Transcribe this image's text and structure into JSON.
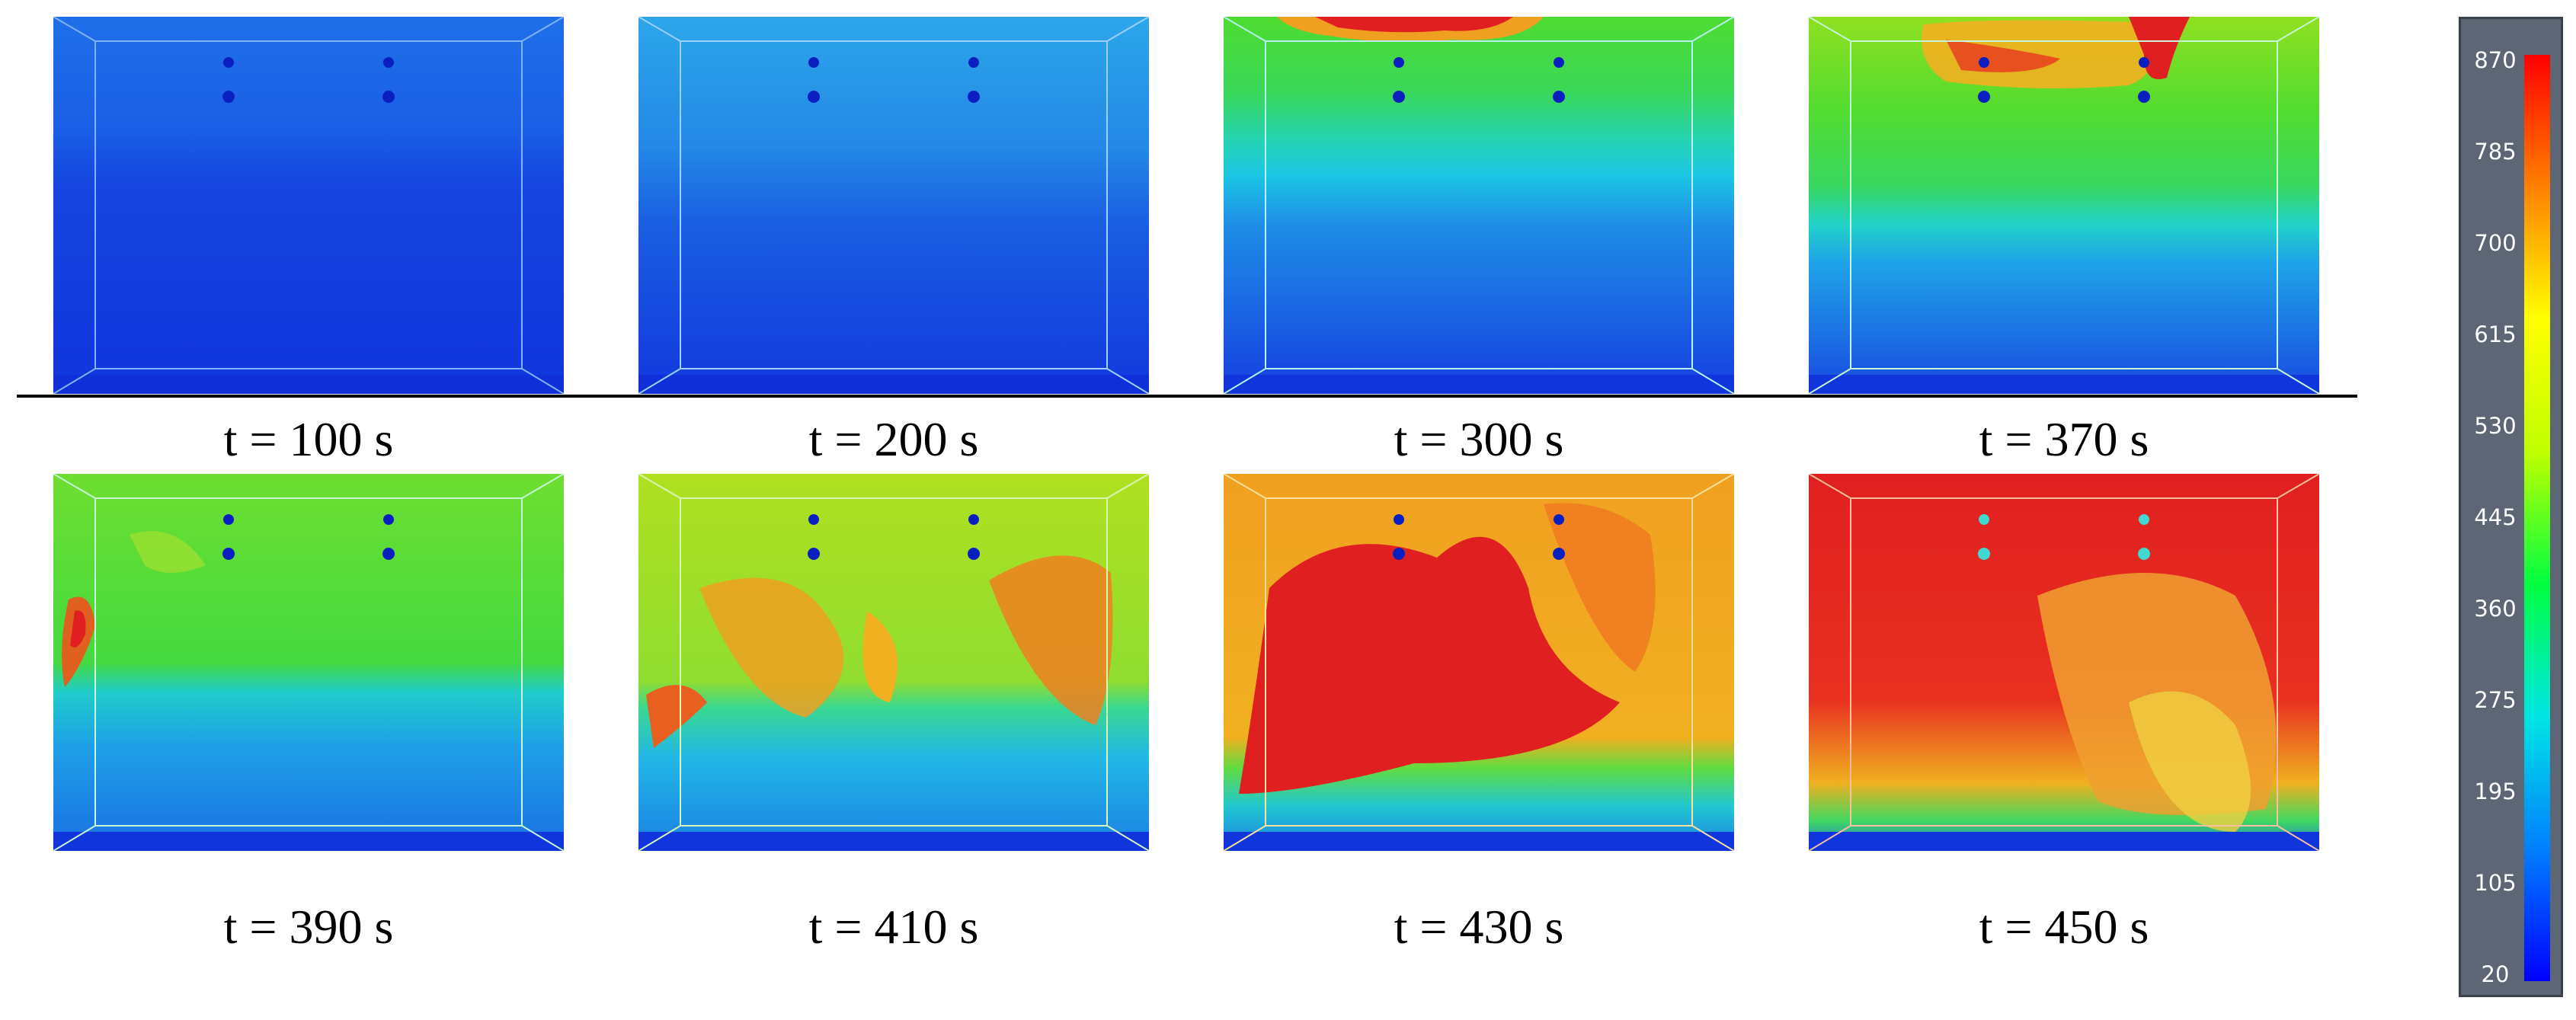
{
  "panels": [
    {
      "caption": "t = 100 s",
      "hot_layer_fraction": 0.0
    },
    {
      "caption": "t = 200 s",
      "hot_layer_fraction": 0.0
    },
    {
      "caption": "t = 300 s",
      "hot_layer_fraction": 0.4
    },
    {
      "caption": "t = 370 s",
      "hot_layer_fraction": 0.55
    },
    {
      "caption": "t = 390 s",
      "hot_layer_fraction": 0.6
    },
    {
      "caption": "t = 410 s",
      "hot_layer_fraction": 0.7
    },
    {
      "caption": "t = 430 s",
      "hot_layer_fraction": 0.85
    },
    {
      "caption": "t = 450 s",
      "hot_layer_fraction": 0.9
    }
  ],
  "colorbar": {
    "labels": [
      "870",
      "785",
      "700",
      "615",
      "530",
      "445",
      "360",
      "275",
      "195",
      "105",
      "20"
    ],
    "min": 20,
    "max": 870,
    "colors": [
      "#0000ff",
      "#0080ff",
      "#00e5e5",
      "#00ff40",
      "#c0ff00",
      "#ffff00",
      "#ff8000",
      "#ff0000"
    ]
  }
}
